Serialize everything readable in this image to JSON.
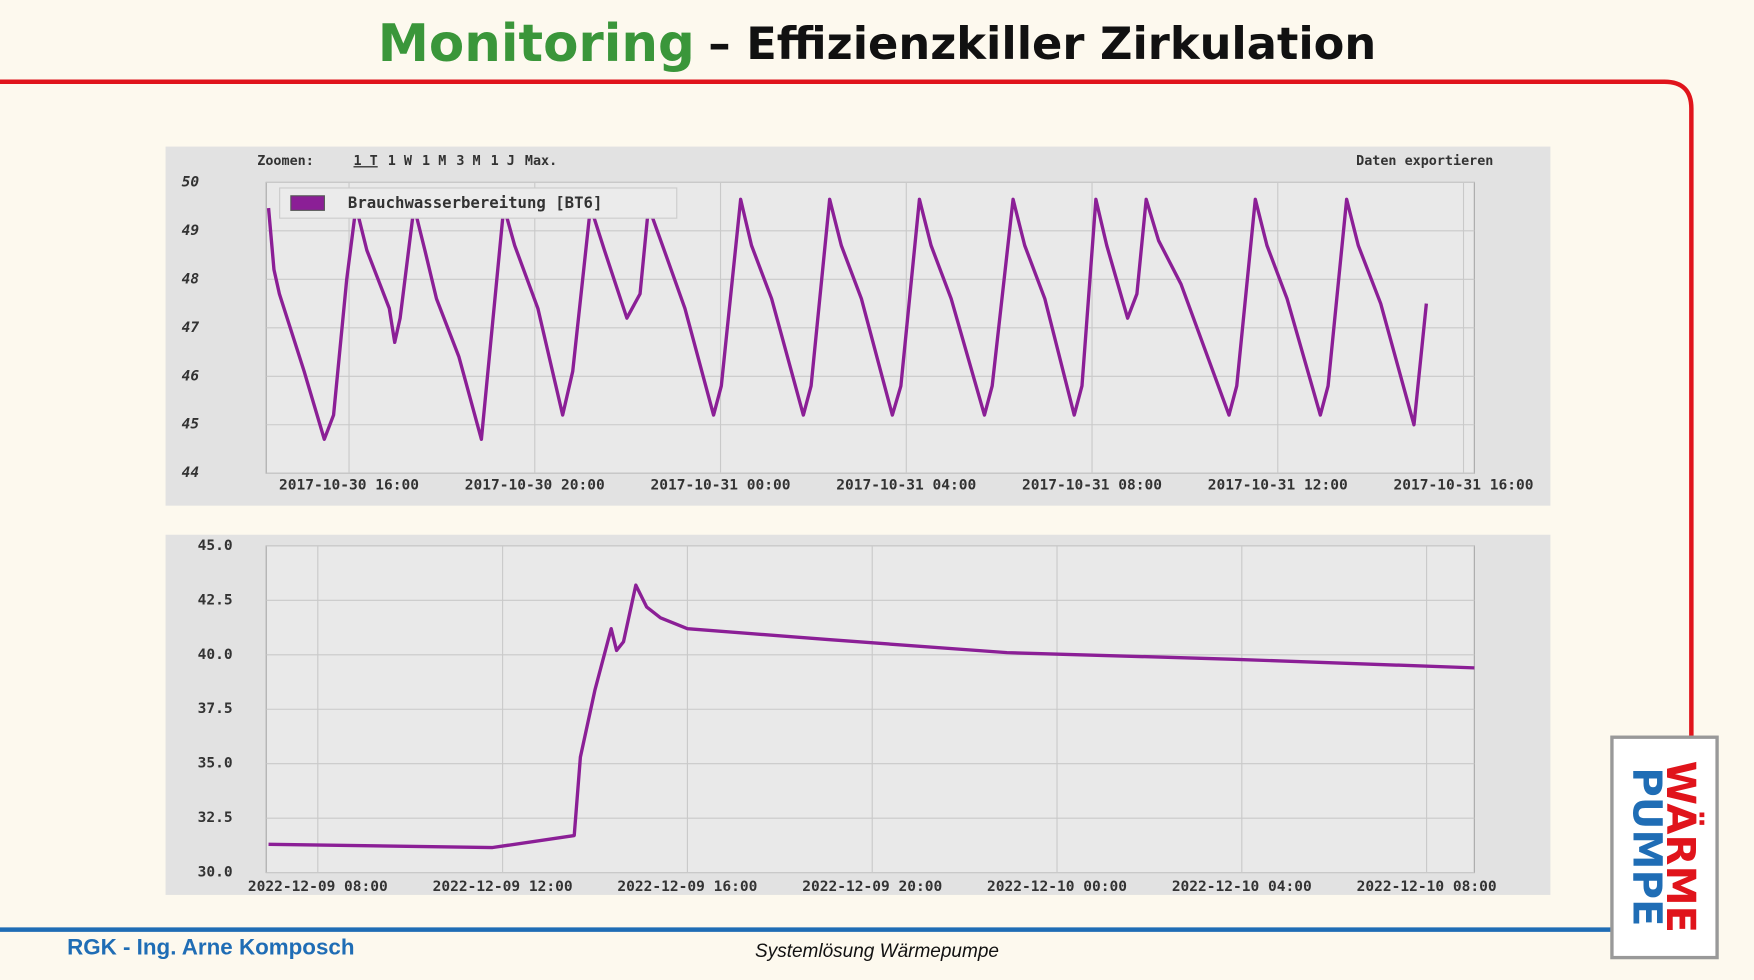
{
  "header": {
    "title_highlight": "Monitoring",
    "title_rest": "– Effizienzkiller Zirkulation"
  },
  "footer": {
    "author": "RGK - Ing. Arne Komposch",
    "caption": "Systemlösung Wärmepumpe"
  },
  "logo": {
    "line1": "WÄRME",
    "line2": "PUMPE"
  },
  "chart_data": [
    {
      "type": "line",
      "zoom_label": "Zoomen:",
      "zoom_options": [
        "1 T",
        "1 W",
        "1 M",
        "3 M",
        "1 J",
        "Max."
      ],
      "export_label": "Daten exportieren",
      "x": [
        "2017-10-30 14:16",
        "2017-10-30 14:23",
        "2017-10-30 14:30",
        "2017-10-30 15:02",
        "2017-10-30 15:28",
        "2017-10-30 15:40",
        "2017-10-30 15:57",
        "2017-10-30 16:09",
        "2017-10-30 16:23",
        "2017-10-30 16:52",
        "2017-10-30 16:59",
        "2017-10-30 17:06",
        "2017-10-30 17:24",
        "2017-10-30 17:38",
        "2017-10-30 17:53",
        "2017-10-30 18:22",
        "2017-10-30 18:51",
        "2017-10-30 19:20",
        "2017-10-30 19:34",
        "2017-10-30 20:04",
        "2017-10-30 20:36",
        "2017-10-30 20:49",
        "2017-10-30 21:12",
        "2017-10-30 21:30",
        "2017-10-30 21:59",
        "2017-10-30 22:16",
        "2017-10-30 22:27",
        "2017-10-30 22:45",
        "2017-10-30 23:14",
        "2017-10-30 23:51",
        "2017-10-31 00:01",
        "2017-10-31 00:26",
        "2017-10-31 00:40",
        "2017-10-31 01:06",
        "2017-10-31 01:47",
        "2017-10-31 01:57",
        "2017-10-31 02:21",
        "2017-10-31 02:36",
        "2017-10-31 03:02",
        "2017-10-31 03:42",
        "2017-10-31 03:53",
        "2017-10-31 04:17",
        "2017-10-31 04:32",
        "2017-10-31 04:58",
        "2017-10-31 05:41",
        "2017-10-31 05:51",
        "2017-10-31 06:18",
        "2017-10-31 06:33",
        "2017-10-31 06:59",
        "2017-10-31 07:37",
        "2017-10-31 07:47",
        "2017-10-31 08:05",
        "2017-10-31 08:19",
        "2017-10-31 08:46",
        "2017-10-31 08:58",
        "2017-10-31 09:10",
        "2017-10-31 09:26",
        "2017-10-31 09:55",
        "2017-10-31 10:57",
        "2017-10-31 11:07",
        "2017-10-31 11:31",
        "2017-10-31 11:46",
        "2017-10-31 12:12",
        "2017-10-31 12:55",
        "2017-10-31 13:05",
        "2017-10-31 13:29",
        "2017-10-31 13:44",
        "2017-10-31 14:13",
        "2017-10-31 14:56",
        "2017-10-31 15:12"
      ],
      "series": [
        {
          "name": "Brauchwasserbereitung [BT6]",
          "color": "#8b1f96",
          "values": [
            49.47,
            48.2,
            47.7,
            46.1,
            44.7,
            45.2,
            48.0,
            49.5,
            48.6,
            47.4,
            46.7,
            47.2,
            49.5,
            48.6,
            47.6,
            46.4,
            44.7,
            49.5,
            48.7,
            47.4,
            45.2,
            46.1,
            49.5,
            48.6,
            47.2,
            47.7,
            49.5,
            48.7,
            47.4,
            45.2,
            45.8,
            49.65,
            48.7,
            47.6,
            45.2,
            45.8,
            49.65,
            48.7,
            47.6,
            45.2,
            45.8,
            49.65,
            48.7,
            47.6,
            45.2,
            45.8,
            49.65,
            48.7,
            47.6,
            45.2,
            45.8,
            49.65,
            48.7,
            47.2,
            47.7,
            49.65,
            48.8,
            47.9,
            45.2,
            45.8,
            49.65,
            48.7,
            47.6,
            45.2,
            45.8,
            49.65,
            48.7,
            47.5,
            45.0,
            47.5
          ]
        }
      ],
      "xlim": [
        "2017-10-30 14:13",
        "2017-10-31 16:14"
      ],
      "xticks": [
        "2017-10-30 16:00",
        "2017-10-30 20:00",
        "2017-10-31 00:00",
        "2017-10-31 04:00",
        "2017-10-31 08:00",
        "2017-10-31 12:00",
        "2017-10-31 16:00"
      ],
      "ylim": [
        44,
        50
      ],
      "yticks": [
        44,
        45,
        46,
        47,
        48,
        49,
        50
      ],
      "grid": true,
      "legend": "top-left"
    },
    {
      "type": "line",
      "x": [
        "2022-12-09 06:56",
        "2022-12-09 11:47",
        "2022-12-09 13:33",
        "2022-12-09 13:41",
        "2022-12-09 14:00",
        "2022-12-09 14:21",
        "2022-12-09 14:28",
        "2022-12-09 14:37",
        "2022-12-09 14:53",
        "2022-12-09 15:07",
        "2022-12-09 15:25",
        "2022-12-09 16:00",
        "2022-12-09 19:03",
        "2022-12-09 22:55",
        "2022-12-10 03:45",
        "2022-12-10 09:02"
      ],
      "series": [
        {
          "color": "#8b1f96",
          "values": [
            31.3,
            31.15,
            31.7,
            35.3,
            38.4,
            41.2,
            40.2,
            40.6,
            43.2,
            42.2,
            41.7,
            41.2,
            40.7,
            40.1,
            39.8,
            39.4
          ]
        }
      ],
      "xlim": [
        "2022-12-09 06:53",
        "2022-12-10 09:02"
      ],
      "xticks": [
        "2022-12-09 08:00",
        "2022-12-09 12:00",
        "2022-12-09 16:00",
        "2022-12-09 20:00",
        "2022-12-10 00:00",
        "2022-12-10 04:00",
        "2022-12-10 08:00"
      ],
      "ylim": [
        30,
        45
      ],
      "yticks": [
        {
          "value": 30,
          "label": "30.0"
        },
        {
          "value": 32.5,
          "label": "32.5"
        },
        {
          "value": 35,
          "label": "35.0"
        },
        {
          "value": 37.5,
          "label": "37.5"
        },
        {
          "value": 40,
          "label": "40.0"
        },
        {
          "value": 42.5,
          "label": "42.5"
        },
        {
          "value": 45,
          "label": "45.0"
        }
      ],
      "grid": true
    }
  ]
}
